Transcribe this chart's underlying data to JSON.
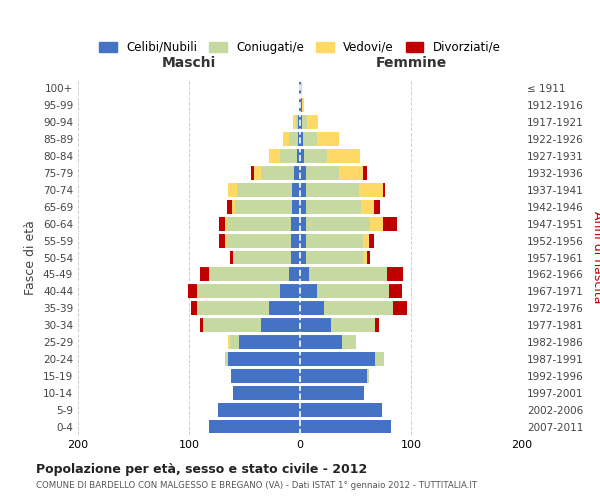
{
  "age_groups": [
    "0-4",
    "5-9",
    "10-14",
    "15-19",
    "20-24",
    "25-29",
    "30-34",
    "35-39",
    "40-44",
    "45-49",
    "50-54",
    "55-59",
    "60-64",
    "65-69",
    "70-74",
    "75-79",
    "80-84",
    "85-89",
    "90-94",
    "95-99",
    "100+"
  ],
  "birth_years": [
    "2007-2011",
    "2002-2006",
    "1997-2001",
    "1992-1996",
    "1987-1991",
    "1982-1986",
    "1977-1981",
    "1972-1976",
    "1967-1971",
    "1962-1966",
    "1957-1961",
    "1952-1956",
    "1947-1951",
    "1942-1946",
    "1937-1941",
    "1932-1936",
    "1927-1931",
    "1922-1926",
    "1917-1921",
    "1912-1916",
    "≤ 1911"
  ],
  "males": {
    "celibe": [
      82,
      74,
      60,
      62,
      65,
      55,
      35,
      28,
      18,
      10,
      8,
      8,
      8,
      7,
      7,
      5,
      3,
      2,
      2,
      1,
      1
    ],
    "coniugato": [
      0,
      0,
      0,
      0,
      3,
      8,
      52,
      65,
      75,
      72,
      52,
      58,
      58,
      52,
      50,
      30,
      15,
      8,
      2,
      0,
      0
    ],
    "vedovo": [
      0,
      0,
      0,
      0,
      0,
      2,
      0,
      0,
      0,
      0,
      0,
      2,
      2,
      2,
      8,
      6,
      10,
      5,
      2,
      0,
      0
    ],
    "divorziato": [
      0,
      0,
      0,
      0,
      0,
      0,
      3,
      5,
      8,
      8,
      3,
      5,
      5,
      5,
      0,
      3,
      0,
      0,
      0,
      0,
      0
    ]
  },
  "females": {
    "nubile": [
      82,
      74,
      58,
      60,
      68,
      38,
      28,
      22,
      15,
      8,
      5,
      5,
      5,
      5,
      5,
      5,
      4,
      3,
      2,
      2,
      1
    ],
    "coniugata": [
      0,
      0,
      0,
      2,
      8,
      12,
      40,
      62,
      65,
      70,
      52,
      52,
      58,
      50,
      48,
      30,
      20,
      12,
      4,
      0,
      0
    ],
    "vedova": [
      0,
      0,
      0,
      0,
      0,
      0,
      0,
      0,
      0,
      0,
      3,
      5,
      12,
      12,
      22,
      22,
      30,
      20,
      10,
      2,
      1
    ],
    "divorziata": [
      0,
      0,
      0,
      0,
      0,
      0,
      3,
      12,
      12,
      15,
      3,
      5,
      12,
      5,
      2,
      3,
      0,
      0,
      0,
      0,
      0
    ]
  },
  "colors": {
    "celibe": "#4472C4",
    "coniugato": "#c5d9a0",
    "vedovo": "#FFD966",
    "divorziato": "#C00000"
  },
  "legend_labels": [
    "Celibi/Nubili",
    "Coniugati/e",
    "Vedovi/e",
    "Divorziati/e"
  ],
  "title": "Popolazione per età, sesso e stato civile - 2012",
  "subtitle": "COMUNE DI BARDELLO CON MALGESSO E BREGANO (VA) - Dati ISTAT 1° gennaio 2012 - TUTTITALIA.IT",
  "xlabel_left": "Maschi",
  "xlabel_right": "Femmine",
  "ylabel_left": "Fasce di età",
  "ylabel_right": "Anni di nascita",
  "xlim": 200,
  "background_color": "#ffffff",
  "grid_color": "#cccccc"
}
